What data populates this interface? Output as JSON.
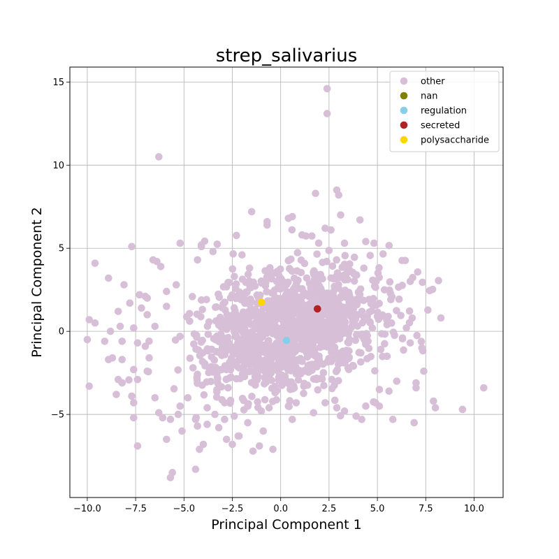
{
  "chart_data": {
    "type": "scatter",
    "title": "strep_salivarius",
    "xlabel": "Principal Component 1",
    "ylabel": "Principal Component 2",
    "xlim": [
      -10.9,
      11.5
    ],
    "ylim": [
      -10.0,
      15.9
    ],
    "xticks": [
      -10.0,
      -7.5,
      -5.0,
      -2.5,
      0.0,
      2.5,
      5.0,
      7.5,
      10.0
    ],
    "xtick_labels": [
      "−10.0",
      "−7.5",
      "−5.0",
      "−2.5",
      "0.0",
      "2.5",
      "5.0",
      "7.5",
      "10.0"
    ],
    "yticks": [
      -5,
      0,
      5,
      10,
      15
    ],
    "ytick_labels": [
      "−5",
      "0",
      "5",
      "10",
      "15"
    ],
    "grid": true,
    "legend_position": "top-right",
    "series": [
      {
        "name": "other",
        "color": "#d8bfd8",
        "points": [
          [
            2.4,
            14.6
          ],
          [
            2.4,
            13.1
          ],
          [
            -6.3,
            10.5
          ],
          [
            1.8,
            8.3
          ],
          [
            2.9,
            8.5
          ],
          [
            3.0,
            8.2
          ],
          [
            3.1,
            7.0
          ],
          [
            4.1,
            6.7
          ],
          [
            -1.5,
            7.2
          ],
          [
            -0.7,
            6.6
          ],
          [
            -0.7,
            6.4
          ],
          [
            0.4,
            6.8
          ],
          [
            0.6,
            6.9
          ],
          [
            2.3,
            6.2
          ],
          [
            2.6,
            6.1
          ],
          [
            1.1,
            5.8
          ],
          [
            3.3,
            5.3
          ],
          [
            4.4,
            5.4
          ],
          [
            -5.2,
            5.3
          ],
          [
            -7.7,
            5.1
          ],
          [
            -4.1,
            5.2
          ],
          [
            -4.1,
            5.1
          ],
          [
            -6.6,
            4.3
          ],
          [
            -6.4,
            4.2
          ],
          [
            -6.2,
            3.9
          ],
          [
            -9.6,
            4.1
          ],
          [
            -8.1,
            2.8
          ],
          [
            -8.9,
            3.2
          ],
          [
            6.7,
            3.0
          ],
          [
            4.3,
            3.8
          ],
          [
            -7.3,
            2.2
          ],
          [
            -7.0,
            2.1
          ],
          [
            -5.9,
            2.4
          ],
          [
            -5.4,
            2.8
          ],
          [
            -7.8,
            1.7
          ],
          [
            -8.4,
            1.2
          ],
          [
            -6.9,
            1.0
          ],
          [
            -7.2,
            1.4
          ],
          [
            -5.9,
            1.5
          ],
          [
            -9.9,
            0.7
          ],
          [
            -9.6,
            0.5
          ],
          [
            -8.3,
            0.3
          ],
          [
            -8.8,
            0.0
          ],
          [
            -7.6,
            0.2
          ],
          [
            -6.5,
            0.3
          ],
          [
            -9.1,
            -0.6
          ],
          [
            -8.2,
            -0.6
          ],
          [
            -7.4,
            -0.7
          ],
          [
            -7.0,
            -0.9
          ],
          [
            -8.7,
            -1.6
          ],
          [
            -8.9,
            -1.7
          ],
          [
            -8.2,
            -1.7
          ],
          [
            -6.8,
            -1.6
          ],
          [
            -7.6,
            -2.3
          ],
          [
            -6.9,
            -2.4
          ],
          [
            -8.4,
            -2.9
          ],
          [
            -8.2,
            -3.1
          ],
          [
            -7.4,
            -2.9
          ],
          [
            -9.9,
            -3.3
          ],
          [
            -8.5,
            -3.8
          ],
          [
            -7.7,
            -3.9
          ],
          [
            -7.6,
            -4.3
          ],
          [
            -6.5,
            -4.0
          ],
          [
            -7.6,
            -5.2
          ],
          [
            -6.3,
            -4.9
          ],
          [
            -6.1,
            -5.2
          ],
          [
            -5.7,
            -5.3
          ],
          [
            -5.3,
            -5.0
          ],
          [
            -7.4,
            -6.9
          ],
          [
            -5.9,
            -6.5
          ],
          [
            -5.1,
            -6.0
          ],
          [
            -4.2,
            -7.1
          ],
          [
            -4.0,
            -6.8
          ],
          [
            -5.6,
            -8.5
          ],
          [
            -5.7,
            -8.8
          ],
          [
            -4.4,
            -8.3
          ],
          [
            -2.8,
            -6.5
          ],
          [
            -2.5,
            -6.8
          ],
          [
            -2.2,
            -6.3
          ],
          [
            -1.1,
            -6.9
          ],
          [
            -0.9,
            -6.0
          ],
          [
            -0.4,
            -7.1
          ],
          [
            -1.7,
            -5.5
          ],
          [
            0.4,
            -4.5
          ],
          [
            0.8,
            -4.3
          ],
          [
            1.7,
            -4.9
          ],
          [
            2.3,
            -4.3
          ],
          [
            2.9,
            -4.6
          ],
          [
            3.3,
            -4.8
          ],
          [
            3.9,
            -5.1
          ],
          [
            4.4,
            -4.5
          ],
          [
            4.9,
            -4.3
          ],
          [
            5.1,
            -4.5
          ],
          [
            5.8,
            -5.3
          ],
          [
            6.9,
            -5.5
          ],
          [
            7.9,
            -4.2
          ],
          [
            8.0,
            -4.6
          ],
          [
            9.4,
            -4.7
          ],
          [
            10.5,
            -3.4
          ],
          [
            7.0,
            -3.1
          ],
          [
            7.0,
            -3.4
          ],
          [
            7.4,
            -2.4
          ],
          [
            6.0,
            -3.0
          ],
          [
            5.6,
            -3.6
          ],
          [
            7.3,
            -1.0
          ],
          [
            6.7,
            -0.7
          ],
          [
            6.3,
            -0.4
          ],
          [
            6.5,
            0.2
          ],
          [
            6.8,
            0.8
          ],
          [
            5.5,
            0.4
          ],
          [
            5.0,
            0.9
          ],
          [
            4.2,
            1.2
          ],
          [
            5.5,
            -1.5
          ],
          [
            -1.0,
            -4.8
          ],
          [
            -0.6,
            -4.6
          ],
          [
            -1.7,
            -4.5
          ],
          [
            -2.9,
            -4.3
          ],
          [
            -3.8,
            -4.6
          ],
          [
            -4.8,
            -4.0
          ],
          [
            -5.2,
            -4.5
          ],
          [
            -3.4,
            -5.0
          ],
          [
            -2.9,
            -5.3
          ],
          [
            -4.4,
            -5.3
          ],
          [
            -4.3,
            -5.7
          ],
          [
            -3.2,
            -5.8
          ],
          [
            -3.8,
            -5.6
          ],
          [
            -2.4,
            -5.1
          ],
          [
            0.6,
            -5.3
          ],
          [
            -10.0,
            -0.5
          ],
          [
            -6.9,
            2.0
          ],
          [
            -4.3,
            4.3
          ],
          [
            -3.5,
            4.8
          ],
          [
            -2.0,
            4.6
          ]
        ],
        "cluster": {
          "center": [
            0.6,
            0.2
          ],
          "spread": [
            2.35,
            1.85
          ],
          "count": 1300,
          "seed": 7
        }
      },
      {
        "name": "nan",
        "color": "#808000",
        "points": []
      },
      {
        "name": "regulation",
        "color": "#87ceeb",
        "points": [
          [
            0.3,
            -0.55
          ]
        ]
      },
      {
        "name": "secreted",
        "color": "#b22222",
        "points": [
          [
            1.9,
            1.35
          ]
        ]
      },
      {
        "name": "polysaccharide",
        "color": "#ffd700",
        "points": [
          [
            -1.0,
            1.75
          ]
        ]
      }
    ]
  }
}
